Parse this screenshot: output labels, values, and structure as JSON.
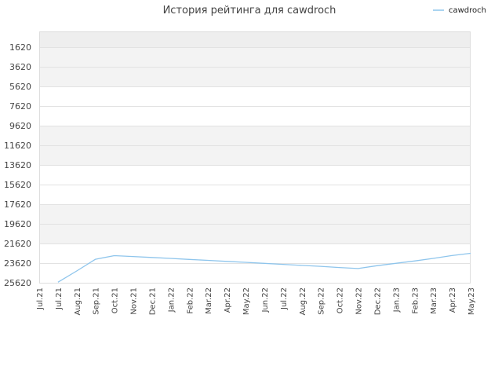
{
  "chart_data": {
    "type": "line",
    "title": "История рейтинга для cawdroch",
    "legend": {
      "position": "top-right"
    },
    "y_reversed": true,
    "ylim": [
      1620,
      25620
    ],
    "yticks": [
      1620,
      3620,
      5620,
      7620,
      9620,
      11620,
      13620,
      15620,
      17620,
      19620,
      21620,
      23620,
      25620
    ],
    "x": [
      "Jul.21",
      "Jul.21",
      "Aug.21",
      "Sep.21",
      "Oct.21",
      "Nov.21",
      "Dec.21",
      "Jan.22",
      "Feb.22",
      "Mar.22",
      "Apr.22",
      "May.22",
      "Jun.22",
      "Jul.22",
      "Aug.22",
      "Sep.22",
      "Oct.22",
      "Nov.22",
      "Dec.22",
      "Jan.23",
      "Feb.23",
      "Mar.23",
      "Apr.23",
      "May.23"
    ],
    "grid": true,
    "series": [
      {
        "name": "cawdroch",
        "color": "#8ec5ec",
        "values": [
          null,
          25560,
          24420,
          23230,
          22860,
          22950,
          23040,
          23140,
          23240,
          23340,
          23440,
          23540,
          23640,
          23750,
          23850,
          23950,
          24070,
          24170,
          23880,
          23640,
          23400,
          23140,
          22850,
          22620
        ]
      }
    ]
  }
}
